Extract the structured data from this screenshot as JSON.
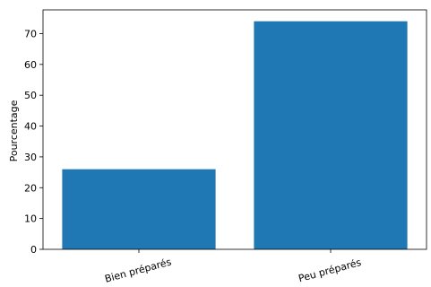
{
  "chart_data": {
    "type": "bar",
    "categories": [
      "Bien préparés",
      "Peu préparés"
    ],
    "values": [
      26,
      74
    ],
    "title": "",
    "xlabel": "",
    "ylabel": "Pourcentage",
    "ylim": [
      0,
      77.7
    ],
    "yticks": [
      0,
      10,
      20,
      30,
      40,
      50,
      60,
      70
    ],
    "grid": false,
    "bar_color": "#1f77b4",
    "xtick_rotation_deg": -15
  }
}
